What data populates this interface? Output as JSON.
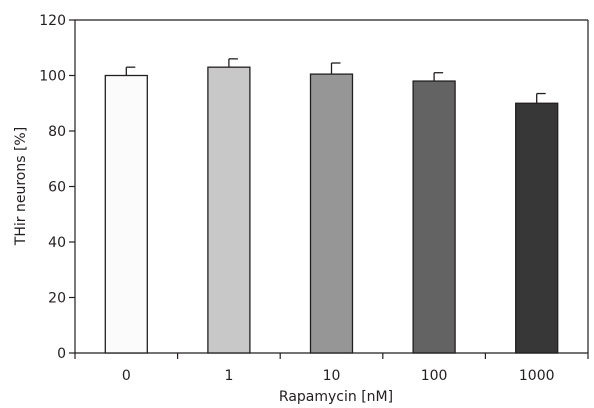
{
  "chart_data": {
    "type": "bar",
    "categories": [
      "0",
      "1",
      "10",
      "100",
      "1000"
    ],
    "values": [
      100,
      103,
      100.5,
      98,
      90
    ],
    "errors": [
      3,
      3,
      4,
      3,
      3.5
    ],
    "bar_colors": [
      "#fbfbfb",
      "#c8c8c8",
      "#969696",
      "#636363",
      "#373737"
    ],
    "xlabel": "Rapamycin [nM]",
    "ylabel": "THir neurons [%]",
    "ylim": [
      0,
      120
    ],
    "yticks": [
      0,
      20,
      40,
      60,
      80,
      100,
      120
    ],
    "grid": false
  }
}
